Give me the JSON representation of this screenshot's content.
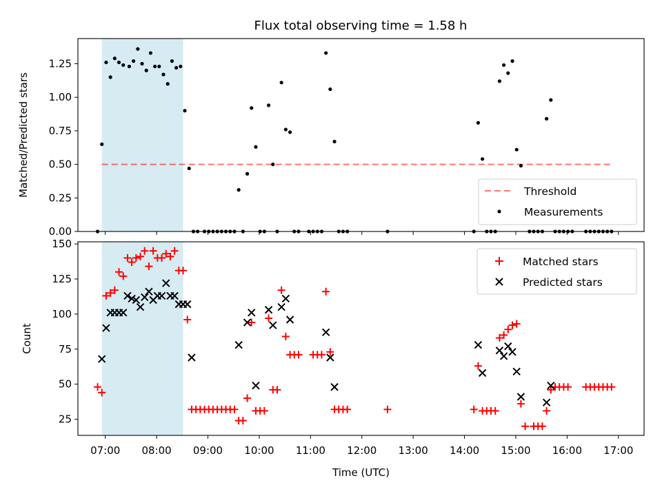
{
  "title": "Flux total observing time = 1.58 h",
  "colors": {
    "shade": "#add8e6",
    "threshold": "#ff0000",
    "matched": "#ff0000",
    "predicted": "#000000",
    "measurement": "#000000"
  },
  "chart_data": [
    {
      "type": "scatter",
      "ylabel": "Matched/Predicted stars",
      "xlabel": "",
      "xlim": [
        "06:28",
        "17:30"
      ],
      "ylim": [
        0,
        1.4375
      ],
      "y_ticks": [
        0,
        0.25,
        0.5,
        0.75,
        1.0,
        1.25
      ],
      "y_tick_labels": [
        "0.00",
        "0.25",
        "0.50",
        "0.75",
        "1.00",
        "1.25"
      ],
      "shaded_interval": [
        "06:56",
        "08:31"
      ],
      "threshold": {
        "name": "Threshold",
        "y": 0.5,
        "x_start": "06:56",
        "x_end": "16:52"
      },
      "legend_position": "lower-right",
      "legend": [
        "Threshold",
        "Measurements"
      ],
      "series": [
        {
          "name": "Measurements",
          "points": [
            [
              "06:51",
              0.0
            ],
            [
              "06:56",
              0.65
            ],
            [
              "07:01",
              1.26
            ],
            [
              "07:06",
              1.15
            ],
            [
              "07:11",
              1.29
            ],
            [
              "07:16",
              1.26
            ],
            [
              "07:21",
              1.24
            ],
            [
              "07:28",
              1.23
            ],
            [
              "07:33",
              1.27
            ],
            [
              "07:38",
              1.36
            ],
            [
              "07:43",
              1.25
            ],
            [
              "07:48",
              1.2
            ],
            [
              "07:53",
              1.33
            ],
            [
              "07:58",
              1.23
            ],
            [
              "08:03",
              1.23
            ],
            [
              "08:08",
              1.17
            ],
            [
              "08:13",
              1.1
            ],
            [
              "08:18",
              1.27
            ],
            [
              "08:23",
              1.22
            ],
            [
              "08:28",
              1.23
            ],
            [
              "08:33",
              0.9
            ],
            [
              "08:38",
              0.47
            ],
            [
              "08:43",
              0.0
            ],
            [
              "08:48",
              0.0
            ],
            [
              "08:56",
              0.0
            ],
            [
              "09:01",
              0.0
            ],
            [
              "09:06",
              0.0
            ],
            [
              "09:11",
              0.0
            ],
            [
              "09:16",
              0.0
            ],
            [
              "09:21",
              0.0
            ],
            [
              "09:26",
              0.0
            ],
            [
              "09:31",
              0.0
            ],
            [
              "09:36",
              0.31
            ],
            [
              "09:41",
              0.0
            ],
            [
              "09:46",
              0.43
            ],
            [
              "09:51",
              0.92
            ],
            [
              "09:56",
              0.63
            ],
            [
              "10:01",
              0.0
            ],
            [
              "10:06",
              0.0
            ],
            [
              "10:11",
              0.94
            ],
            [
              "10:16",
              0.5
            ],
            [
              "10:21",
              0.0
            ],
            [
              "10:26",
              1.11
            ],
            [
              "10:31",
              0.76
            ],
            [
              "10:36",
              0.74
            ],
            [
              "10:41",
              0.0
            ],
            [
              "10:46",
              0.0
            ],
            [
              "10:58",
              0.0
            ],
            [
              "11:03",
              0.0
            ],
            [
              "11:08",
              0.0
            ],
            [
              "11:13",
              0.0
            ],
            [
              "11:18",
              1.33
            ],
            [
              "11:23",
              1.06
            ],
            [
              "11:28",
              0.67
            ],
            [
              "11:33",
              0.0
            ],
            [
              "11:38",
              0.0
            ],
            [
              "11:43",
              0.0
            ],
            [
              "12:30",
              0.0
            ],
            [
              "14:11",
              0.0
            ],
            [
              "14:16",
              0.81
            ],
            [
              "14:21",
              0.54
            ],
            [
              "14:26",
              0.0
            ],
            [
              "14:31",
              0.0
            ],
            [
              "14:36",
              0.0
            ],
            [
              "14:41",
              1.12
            ],
            [
              "14:46",
              1.24
            ],
            [
              "14:51",
              1.18
            ],
            [
              "14:56",
              1.27
            ],
            [
              "15:01",
              0.61
            ],
            [
              "15:06",
              0.49
            ],
            [
              "15:16",
              0.0
            ],
            [
              "15:21",
              0.0
            ],
            [
              "15:26",
              0.0
            ],
            [
              "15:31",
              0.0
            ],
            [
              "15:36",
              0.84
            ],
            [
              "15:41",
              0.98
            ],
            [
              "15:46",
              0.0
            ],
            [
              "15:51",
              0.0
            ],
            [
              "15:56",
              0.0
            ],
            [
              "16:01",
              0.0
            ],
            [
              "16:06",
              0.0
            ],
            [
              "16:22",
              0.0
            ],
            [
              "16:27",
              0.0
            ],
            [
              "16:32",
              0.0
            ],
            [
              "16:37",
              0.0
            ],
            [
              "16:42",
              0.0
            ],
            [
              "16:47",
              0.0
            ],
            [
              "16:52",
              0.0
            ]
          ]
        }
      ]
    },
    {
      "type": "scatter",
      "ylabel": "Count",
      "xlabel": "Time (UTC)",
      "xlim": [
        "06:28",
        "17:30"
      ],
      "ylim": [
        13.5,
        151.5
      ],
      "x_ticks": [
        "07:00",
        "08:00",
        "09:00",
        "10:00",
        "11:00",
        "12:00",
        "13:00",
        "14:00",
        "15:00",
        "16:00",
        "17:00"
      ],
      "y_ticks": [
        25,
        50,
        75,
        100,
        125,
        150
      ],
      "y_tick_labels": [
        "25",
        "50",
        "75",
        "100",
        "125",
        "150"
      ],
      "shaded_interval": [
        "06:56",
        "08:31"
      ],
      "legend_position": "upper-right",
      "legend": [
        "Matched stars",
        "Predicted stars"
      ],
      "series": [
        {
          "name": "Matched stars",
          "marker": "+",
          "points": [
            [
              "06:51",
              48
            ],
            [
              "06:56",
              44
            ],
            [
              "07:01",
              113
            ],
            [
              "07:06",
              115
            ],
            [
              "07:11",
              117
            ],
            [
              "07:16",
              130
            ],
            [
              "07:21",
              127
            ],
            [
              "07:26",
              140
            ],
            [
              "07:31",
              137
            ],
            [
              "07:36",
              140
            ],
            [
              "07:41",
              141
            ],
            [
              "07:46",
              145
            ],
            [
              "07:51",
              134
            ],
            [
              "07:56",
              145
            ],
            [
              "08:01",
              140
            ],
            [
              "08:06",
              140
            ],
            [
              "08:11",
              143
            ],
            [
              "08:16",
              141
            ],
            [
              "08:21",
              145
            ],
            [
              "08:26",
              131
            ],
            [
              "08:31",
              131
            ],
            [
              "08:36",
              96
            ],
            [
              "08:41",
              32
            ],
            [
              "08:46",
              32
            ],
            [
              "08:51",
              32
            ],
            [
              "08:56",
              32
            ],
            [
              "09:01",
              32
            ],
            [
              "09:06",
              32
            ],
            [
              "09:11",
              32
            ],
            [
              "09:16",
              32
            ],
            [
              "09:21",
              32
            ],
            [
              "09:26",
              32
            ],
            [
              "09:31",
              32
            ],
            [
              "09:36",
              24
            ],
            [
              "09:41",
              24
            ],
            [
              "09:46",
              40
            ],
            [
              "09:51",
              94
            ],
            [
              "09:56",
              31
            ],
            [
              "10:01",
              31
            ],
            [
              "10:06",
              31
            ],
            [
              "10:11",
              97
            ],
            [
              "10:16",
              46
            ],
            [
              "10:21",
              46
            ],
            [
              "10:26",
              117
            ],
            [
              "10:31",
              84
            ],
            [
              "10:36",
              71
            ],
            [
              "10:41",
              71
            ],
            [
              "10:46",
              71
            ],
            [
              "11:03",
              71
            ],
            [
              "11:08",
              71
            ],
            [
              "11:13",
              71
            ],
            [
              "11:18",
              116
            ],
            [
              "11:23",
              73
            ],
            [
              "11:28",
              32
            ],
            [
              "11:33",
              32
            ],
            [
              "11:38",
              32
            ],
            [
              "11:43",
              32
            ],
            [
              "12:30",
              32
            ],
            [
              "14:11",
              32
            ],
            [
              "14:16",
              63
            ],
            [
              "14:21",
              31
            ],
            [
              "14:26",
              31
            ],
            [
              "14:31",
              31
            ],
            [
              "14:36",
              31
            ],
            [
              "14:41",
              83
            ],
            [
              "14:46",
              85
            ],
            [
              "14:51",
              89
            ],
            [
              "14:56",
              92
            ],
            [
              "15:01",
              93
            ],
            [
              "15:06",
              36
            ],
            [
              "15:11",
              20
            ],
            [
              "15:21",
              20
            ],
            [
              "15:26",
              20
            ],
            [
              "15:31",
              20
            ],
            [
              "15:36",
              31
            ],
            [
              "15:41",
              46
            ],
            [
              "15:46",
              48
            ],
            [
              "15:51",
              48
            ],
            [
              "15:56",
              48
            ],
            [
              "16:01",
              48
            ],
            [
              "16:22",
              48
            ],
            [
              "16:27",
              48
            ],
            [
              "16:32",
              48
            ],
            [
              "16:37",
              48
            ],
            [
              "16:42",
              48
            ],
            [
              "16:47",
              48
            ],
            [
              "16:52",
              48
            ]
          ]
        },
        {
          "name": "Predicted stars",
          "marker": "x",
          "points": [
            [
              "06:56",
              68
            ],
            [
              "07:01",
              90
            ],
            [
              "07:06",
              101
            ],
            [
              "07:11",
              101
            ],
            [
              "07:16",
              101
            ],
            [
              "07:21",
              101
            ],
            [
              "07:26",
              113
            ],
            [
              "07:31",
              111
            ],
            [
              "07:36",
              110
            ],
            [
              "07:41",
              105
            ],
            [
              "07:46",
              112
            ],
            [
              "07:51",
              116
            ],
            [
              "07:56",
              110
            ],
            [
              "08:01",
              113
            ],
            [
              "08:06",
              113
            ],
            [
              "08:11",
              122
            ],
            [
              "08:16",
              113
            ],
            [
              "08:21",
              113
            ],
            [
              "08:26",
              107
            ],
            [
              "08:31",
              107
            ],
            [
              "08:36",
              107
            ],
            [
              "08:41",
              69
            ],
            [
              "09:36",
              78
            ],
            [
              "09:46",
              94
            ],
            [
              "09:51",
              101
            ],
            [
              "09:56",
              49
            ],
            [
              "10:11",
              103
            ],
            [
              "10:16",
              92
            ],
            [
              "10:26",
              105
            ],
            [
              "10:31",
              111
            ],
            [
              "10:36",
              96
            ],
            [
              "11:18",
              87
            ],
            [
              "11:23",
              69
            ],
            [
              "11:28",
              48
            ],
            [
              "14:16",
              78
            ],
            [
              "14:21",
              58
            ],
            [
              "14:41",
              74
            ],
            [
              "14:46",
              70
            ],
            [
              "14:51",
              77
            ],
            [
              "14:56",
              73
            ],
            [
              "15:01",
              59
            ],
            [
              "15:06",
              41
            ],
            [
              "15:36",
              37
            ],
            [
              "15:41",
              49
            ]
          ]
        }
      ]
    }
  ]
}
